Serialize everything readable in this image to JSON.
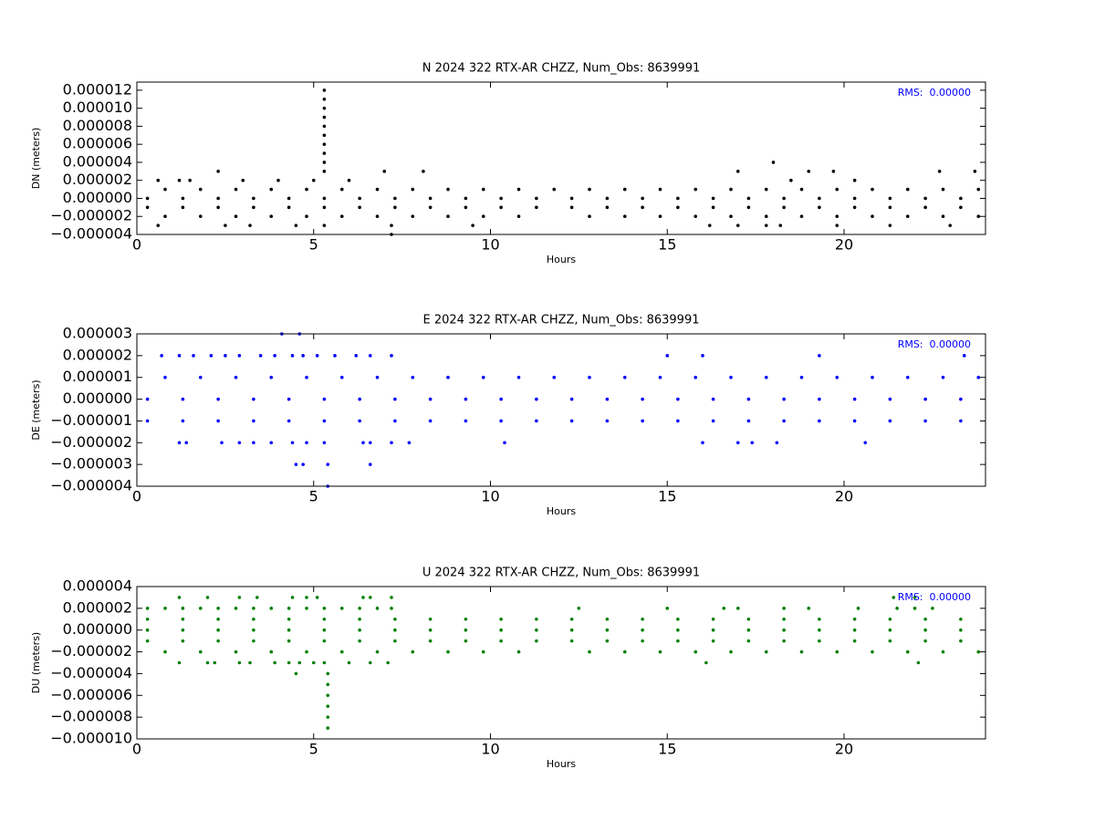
{
  "chart_data": [
    {
      "type": "scatter",
      "title": "N 2024 322 RTX-AR  CHZZ, Num_Obs: 8639991",
      "x_label": "Hours",
      "y_label": "DN (meters)",
      "annotation": "RMS:  0.00000",
      "annotation_color": "#0000ff",
      "xlim": [
        0,
        24
      ],
      "xticks": [
        0,
        5,
        10,
        15,
        20
      ],
      "ylim": [
        -4e-06,
        1.29e-05
      ],
      "yticks": [
        {
          "value": -4e-06,
          "label": "−0.000004"
        },
        {
          "value": -2e-06,
          "label": "−0.000002"
        },
        {
          "value": 0,
          "label": "0.000000"
        },
        {
          "value": 2e-06,
          "label": "0.000002"
        },
        {
          "value": 4e-06,
          "label": "0.000004"
        },
        {
          "value": 6e-06,
          "label": "0.000006"
        },
        {
          "value": 8e-06,
          "label": "0.000008"
        },
        {
          "value": 1e-05,
          "label": "0.000010"
        },
        {
          "value": 1.2e-05,
          "label": "0.000012"
        }
      ],
      "series": [
        {
          "color": "#000000",
          "x": [
            0.3,
            1.3,
            2.3,
            3.3,
            4.3,
            5.3,
            6.3,
            7.3,
            8.3,
            9.3,
            10.3,
            11.3,
            12.3,
            13.3,
            14.3,
            15.3,
            16.3,
            17.3,
            18.3,
            19.3,
            20.3,
            21.3,
            22.3,
            23.3
          ],
          "values": [
            0,
            0,
            0,
            0,
            0,
            0,
            0,
            0,
            0,
            0,
            0,
            0,
            0,
            0,
            0,
            0,
            0,
            0,
            0,
            0,
            0,
            0,
            0,
            0
          ]
        },
        {
          "color": "#000000",
          "x": [
            0.3,
            1.3,
            2.3,
            3.3,
            4.3,
            5.3,
            6.3,
            7.3,
            8.3,
            9.3,
            10.3,
            11.3,
            12.3,
            13.3,
            14.3,
            15.3,
            16.3,
            17.3,
            18.3,
            19.3,
            20.3,
            21.3,
            22.3,
            23.3
          ],
          "values": [
            -1e-06,
            -1e-06,
            -1e-06,
            -1e-06,
            -1e-06,
            -1e-06,
            -1e-06,
            -1e-06,
            -1e-06,
            -1e-06,
            -1e-06,
            -1e-06,
            -1e-06,
            -1e-06,
            -1e-06,
            -1e-06,
            -1e-06,
            -1e-06,
            -1e-06,
            -1e-06,
            -1e-06,
            -1e-06,
            -1e-06,
            -1e-06
          ]
        },
        {
          "color": "#000000",
          "x": [
            0.8,
            1.8,
            2.8,
            3.8,
            4.8,
            5.8,
            6.8,
            7.8,
            8.8,
            9.8,
            10.8,
            11.8,
            12.8,
            13.8,
            14.8,
            15.8,
            16.8,
            17.8,
            18.8,
            19.8,
            20.8,
            21.8,
            22.8,
            23.8
          ],
          "values": [
            1e-06,
            1e-06,
            1e-06,
            1e-06,
            1e-06,
            1e-06,
            1e-06,
            1e-06,
            1e-06,
            1e-06,
            1e-06,
            1e-06,
            1e-06,
            1e-06,
            1e-06,
            1e-06,
            1e-06,
            1e-06,
            1e-06,
            1e-06,
            1e-06,
            1e-06,
            1e-06,
            1e-06
          ]
        },
        {
          "color": "#000000",
          "x": [
            0.8,
            1.8,
            2.8,
            3.8,
            4.8,
            5.8,
            6.8,
            7.8,
            8.8,
            9.8,
            10.8,
            12.8,
            13.8,
            14.8,
            15.8,
            16.8,
            17.8,
            18.8,
            19.8,
            20.8,
            21.8,
            22.8,
            23.8
          ],
          "values": [
            -2e-06,
            -2e-06,
            -2e-06,
            -2e-06,
            -2e-06,
            -2e-06,
            -2e-06,
            -2e-06,
            -2e-06,
            -2e-06,
            -2e-06,
            -2e-06,
            -2e-06,
            -2e-06,
            -2e-06,
            -2e-06,
            -2e-06,
            -2e-06,
            -2e-06,
            -2e-06,
            -2e-06,
            -2e-06,
            -2e-06
          ]
        },
        {
          "color": "#000000",
          "x": [
            5.3,
            5.3,
            5.3,
            5.3,
            5.3,
            5.3,
            5.3,
            5.3,
            5.3,
            5.3,
            0.6,
            1.2,
            1.5,
            2.3,
            3,
            4,
            5,
            6,
            7,
            8.1,
            17,
            18,
            18.5,
            19,
            19.7,
            20.3,
            22.7,
            23.7,
            0.6,
            2.5,
            3.2,
            4.5,
            5.3,
            7.2,
            9.5,
            16.2,
            17,
            17.8,
            18.2,
            19.8,
            21.3,
            23,
            7.2
          ],
          "values": [
            3e-06,
            4e-06,
            5e-06,
            6e-06,
            7e-06,
            8e-06,
            9e-06,
            1e-05,
            1.1e-05,
            1.2e-05,
            2e-06,
            2e-06,
            2e-06,
            3e-06,
            2e-06,
            2e-06,
            2e-06,
            2e-06,
            3e-06,
            3e-06,
            3e-06,
            4e-06,
            2e-06,
            3e-06,
            3e-06,
            2e-06,
            3e-06,
            3e-06,
            -3e-06,
            -3e-06,
            -3e-06,
            -3e-06,
            -3e-06,
            -3e-06,
            -3e-06,
            -3e-06,
            -3e-06,
            -3e-06,
            -3e-06,
            -3e-06,
            -3e-06,
            -3e-06,
            -4e-06
          ]
        }
      ]
    },
    {
      "type": "scatter",
      "title": "E 2024 322 RTX-AR  CHZZ, Num_Obs: 8639991",
      "x_label": "Hours",
      "y_label": "DE (meters)",
      "annotation": "RMS:  0.00000",
      "annotation_color": "#0000ff",
      "xlim": [
        0,
        24
      ],
      "xticks": [
        0,
        5,
        10,
        15,
        20
      ],
      "ylim": [
        -4e-06,
        3e-06
      ],
      "yticks": [
        {
          "value": -4e-06,
          "label": "−0.000004"
        },
        {
          "value": -3e-06,
          "label": "−0.000003"
        },
        {
          "value": -2e-06,
          "label": "−0.000002"
        },
        {
          "value": -1e-06,
          "label": "−0.000001"
        },
        {
          "value": 0,
          "label": "0.000000"
        },
        {
          "value": 1e-06,
          "label": "0.000001"
        },
        {
          "value": 2e-06,
          "label": "0.000002"
        },
        {
          "value": 3e-06,
          "label": "0.000003"
        }
      ],
      "series": [
        {
          "color": "#0000ff",
          "x": [
            0.3,
            1.3,
            2.3,
            3.3,
            4.3,
            5.3,
            6.3,
            7.3,
            8.3,
            9.3,
            10.3,
            11.3,
            12.3,
            13.3,
            14.3,
            15.3,
            16.3,
            17.3,
            18.3,
            19.3,
            20.3,
            21.3,
            22.3,
            23.3
          ],
          "values": [
            0,
            0,
            0,
            0,
            0,
            0,
            0,
            0,
            0,
            0,
            0,
            0,
            0,
            0,
            0,
            0,
            0,
            0,
            0,
            0,
            0,
            0,
            0,
            0
          ]
        },
        {
          "color": "#0000ff",
          "x": [
            0.3,
            1.3,
            2.3,
            3.3,
            4.3,
            5.3,
            6.3,
            7.3,
            8.3,
            9.3,
            10.3,
            11.3,
            12.3,
            13.3,
            14.3,
            15.3,
            16.3,
            17.3,
            18.3,
            19.3,
            20.3,
            21.3,
            22.3,
            23.3
          ],
          "values": [
            -1e-06,
            -1e-06,
            -1e-06,
            -1e-06,
            -1e-06,
            -1e-06,
            -1e-06,
            -1e-06,
            -1e-06,
            -1e-06,
            -1e-06,
            -1e-06,
            -1e-06,
            -1e-06,
            -1e-06,
            -1e-06,
            -1e-06,
            -1e-06,
            -1e-06,
            -1e-06,
            -1e-06,
            -1e-06,
            -1e-06,
            -1e-06
          ]
        },
        {
          "color": "#0000ff",
          "x": [
            0.8,
            1.8,
            2.8,
            3.8,
            4.8,
            5.8,
            6.8,
            7.8,
            8.8,
            9.8,
            10.8,
            11.8,
            12.8,
            13.8,
            14.8,
            15.8,
            16.8,
            17.8,
            18.8,
            19.8,
            20.8,
            21.8,
            22.8,
            23.8
          ],
          "values": [
            1e-06,
            1e-06,
            1e-06,
            1e-06,
            1e-06,
            1e-06,
            1e-06,
            1e-06,
            1e-06,
            1e-06,
            1e-06,
            1e-06,
            1e-06,
            1e-06,
            1e-06,
            1e-06,
            1e-06,
            1e-06,
            1e-06,
            1e-06,
            1e-06,
            1e-06,
            1e-06,
            1e-06
          ]
        },
        {
          "color": "#0000ff",
          "x": [
            0.7,
            1.2,
            1.6,
            2.1,
            2.5,
            2.9,
            3.5,
            3.9,
            4.4,
            4.7,
            5.1,
            5.6,
            6.2,
            6.6,
            7.2,
            15,
            16,
            19.3,
            23.4,
            1.2,
            1.4,
            2.4,
            2.9,
            3.3,
            3.8,
            4.4,
            4.8,
            5.3,
            6.4,
            6.6,
            7.2,
            7.7,
            10.4,
            16,
            17,
            17.4,
            18.1,
            20.6,
            4.5,
            4.7,
            5.4,
            6.6,
            5.4,
            4.1,
            4.6
          ],
          "values": [
            2e-06,
            2e-06,
            2e-06,
            2e-06,
            2e-06,
            2e-06,
            2e-06,
            2e-06,
            2e-06,
            2e-06,
            2e-06,
            2e-06,
            2e-06,
            2e-06,
            2e-06,
            2e-06,
            2e-06,
            2e-06,
            2e-06,
            -2e-06,
            -2e-06,
            -2e-06,
            -2e-06,
            -2e-06,
            -2e-06,
            -2e-06,
            -2e-06,
            -2e-06,
            -2e-06,
            -2e-06,
            -2e-06,
            -2e-06,
            -2e-06,
            -2e-06,
            -2e-06,
            -2e-06,
            -2e-06,
            -2e-06,
            -3e-06,
            -3e-06,
            -3e-06,
            -3e-06,
            -4e-06,
            3e-06,
            3e-06
          ]
        }
      ]
    },
    {
      "type": "scatter",
      "title": "U 2024 322 RTX-AR  CHZZ, Num_Obs: 8639991",
      "x_label": "Hours",
      "y_label": "DU (meters)",
      "annotation": "RMS:  0.00000",
      "annotation_color": "#0000ff",
      "xlim": [
        0,
        24
      ],
      "xticks": [
        0,
        5,
        10,
        15,
        20
      ],
      "ylim": [
        -1e-05,
        4e-06
      ],
      "yticks": [
        {
          "value": -1e-05,
          "label": "−0.000010"
        },
        {
          "value": -8e-06,
          "label": "−0.000008"
        },
        {
          "value": -6e-06,
          "label": "−0.000006"
        },
        {
          "value": -4e-06,
          "label": "−0.000004"
        },
        {
          "value": -2e-06,
          "label": "−0.000002"
        },
        {
          "value": 0,
          "label": "0.000000"
        },
        {
          "value": 2e-06,
          "label": "0.000002"
        },
        {
          "value": 4e-06,
          "label": "0.000004"
        }
      ],
      "series": [
        {
          "color": "#008000",
          "x": [
            0.3,
            1.3,
            2.3,
            3.3,
            4.3,
            5.3,
            6.3,
            7.3,
            8.3,
            9.3,
            10.3,
            11.3,
            12.3,
            13.3,
            14.3,
            15.3,
            16.3,
            17.3,
            18.3,
            19.3,
            20.3,
            21.3,
            22.3,
            23.3
          ],
          "values": [
            0,
            0,
            0,
            0,
            0,
            0,
            0,
            0,
            0,
            0,
            0,
            0,
            0,
            0,
            0,
            0,
            0,
            0,
            0,
            0,
            0,
            0,
            0,
            0
          ]
        },
        {
          "color": "#008000",
          "x": [
            0.3,
            1.3,
            2.3,
            3.3,
            4.3,
            5.3,
            6.3,
            7.3,
            8.3,
            9.3,
            10.3,
            11.3,
            12.3,
            13.3,
            14.3,
            15.3,
            16.3,
            17.3,
            18.3,
            19.3,
            20.3,
            21.3,
            22.3,
            23.3
          ],
          "values": [
            -1e-06,
            -1e-06,
            -1e-06,
            -1e-06,
            -1e-06,
            -1e-06,
            -1e-06,
            -1e-06,
            -1e-06,
            -1e-06,
            -1e-06,
            -1e-06,
            -1e-06,
            -1e-06,
            -1e-06,
            -1e-06,
            -1e-06,
            -1e-06,
            -1e-06,
            -1e-06,
            -1e-06,
            -1e-06,
            -1e-06,
            -1e-06
          ]
        },
        {
          "color": "#008000",
          "x": [
            0.3,
            1.3,
            2.3,
            3.3,
            4.3,
            5.3,
            6.3,
            7.3,
            8.3,
            9.3,
            10.3,
            11.3,
            12.3,
            13.3,
            14.3,
            15.3,
            16.3,
            17.3,
            18.3,
            19.3,
            20.3,
            21.3,
            22.3,
            23.3
          ],
          "values": [
            1e-06,
            1e-06,
            1e-06,
            1e-06,
            1e-06,
            1e-06,
            1e-06,
            1e-06,
            1e-06,
            1e-06,
            1e-06,
            1e-06,
            1e-06,
            1e-06,
            1e-06,
            1e-06,
            1e-06,
            1e-06,
            1e-06,
            1e-06,
            1e-06,
            1e-06,
            1e-06,
            1e-06
          ]
        },
        {
          "color": "#008000",
          "x": [
            0.3,
            0.8,
            1.3,
            1.8,
            2.3,
            2.8,
            3.3,
            3.8,
            4.3,
            4.8,
            5.3,
            5.8,
            6.3,
            6.8,
            7.2,
            12.5,
            15,
            16.6,
            17,
            18.3,
            19,
            20.4,
            21.5,
            22,
            22.5
          ],
          "values": [
            2e-06,
            2e-06,
            2e-06,
            2e-06,
            2e-06,
            2e-06,
            2e-06,
            2e-06,
            2e-06,
            2e-06,
            2e-06,
            2e-06,
            2e-06,
            2e-06,
            2e-06,
            2e-06,
            2e-06,
            2e-06,
            2e-06,
            2e-06,
            2e-06,
            2e-06,
            2e-06,
            2e-06,
            2e-06
          ]
        },
        {
          "color": "#008000",
          "x": [
            0.8,
            1.8,
            2.8,
            3.8,
            4.8,
            5.8,
            6.8,
            7.8,
            8.8,
            9.8,
            10.8,
            12.8,
            13.8,
            14.8,
            15.8,
            16.8,
            17.8,
            18.8,
            19.8,
            20.8,
            21.8,
            22.8,
            23.8
          ],
          "values": [
            -2e-06,
            -2e-06,
            -2e-06,
            -2e-06,
            -2e-06,
            -2e-06,
            -2e-06,
            -2e-06,
            -2e-06,
            -2e-06,
            -2e-06,
            -2e-06,
            -2e-06,
            -2e-06,
            -2e-06,
            -2e-06,
            -2e-06,
            -2e-06,
            -2e-06,
            -2e-06,
            -2e-06,
            -2e-06,
            -2e-06
          ]
        },
        {
          "color": "#008000",
          "x": [
            1.2,
            2,
            2.9,
            3.4,
            4.4,
            4.8,
            5.1,
            6.4,
            6.6,
            7.2,
            21.4,
            22,
            1.2,
            2,
            2.2,
            2.9,
            3.2,
            3.9,
            4.3,
            4.6,
            5,
            5.3,
            6,
            6.6,
            7.1,
            16.1,
            22.1,
            4.5,
            5.4,
            5.4,
            5.4,
            5.4,
            5.4,
            5.4
          ],
          "values": [
            3e-06,
            3e-06,
            3e-06,
            3e-06,
            3e-06,
            3e-06,
            3e-06,
            3e-06,
            3e-06,
            3e-06,
            3e-06,
            3e-06,
            -3e-06,
            -3e-06,
            -3e-06,
            -3e-06,
            -3e-06,
            -3e-06,
            -3e-06,
            -3e-06,
            -3e-06,
            -3e-06,
            -3e-06,
            -3e-06,
            -3e-06,
            -3e-06,
            -3e-06,
            -4e-06,
            -4e-06,
            -5e-06,
            -6e-06,
            -7e-06,
            -8e-06,
            -9e-06
          ]
        }
      ]
    }
  ]
}
